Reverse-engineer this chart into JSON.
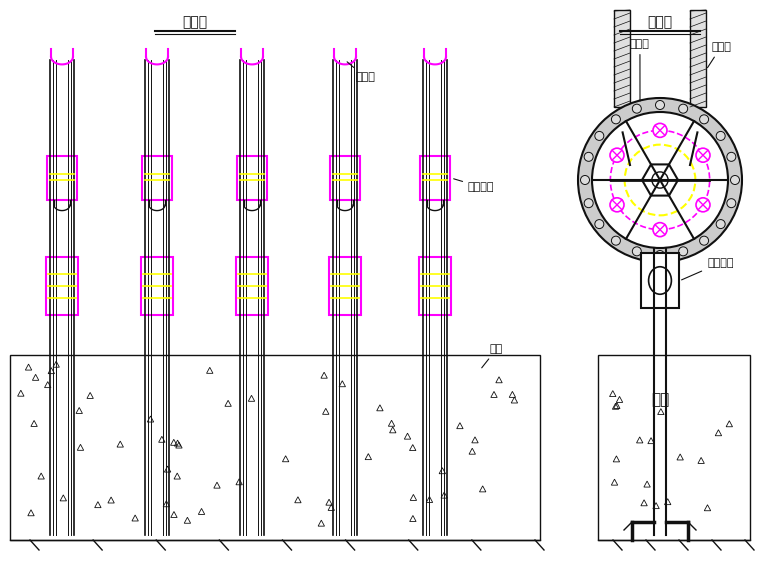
{
  "title_front": "正面图",
  "title_side": "侧面图",
  "bg_color": "#ffffff",
  "magenta": "#FF00FF",
  "yellow": "#FFFF00",
  "dark": "#111111",
  "label_zhuanxianglun_front": "转向轮",
  "label_lianjiejiabing_front": "连接夹板",
  "label_ladi_front": "拉带",
  "label_zhuanxianglun_side": "转向轮",
  "label_chengzhongshen_side": "承重绳",
  "label_lianjiejiabing_side": "连接夹板",
  "label_ladi_side": "拉带"
}
